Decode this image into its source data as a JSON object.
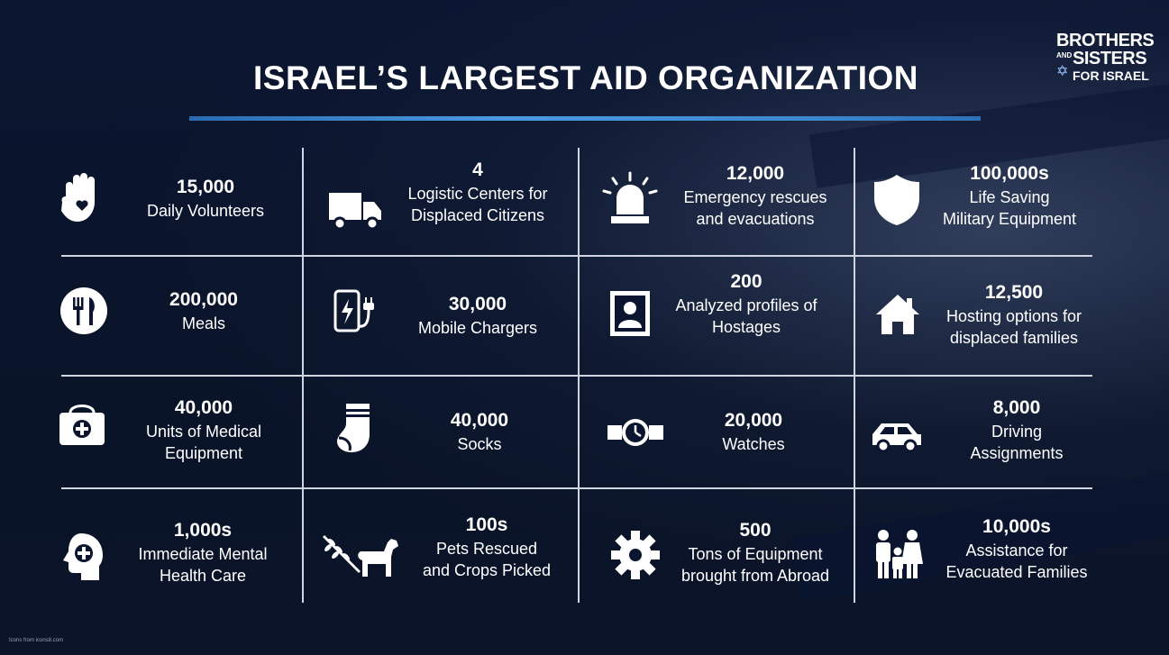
{
  "title": "ISRAEL’S LARGEST AID ORGANIZATION",
  "logo": {
    "line1": "BROTHERS",
    "line2": "AND",
    "line3": "SISTERS",
    "line4": "FOR ISRAEL"
  },
  "credit": "Icons from icons8.com",
  "stats": [
    {
      "number": "15,000",
      "label_1": "Daily Volunteers",
      "label_2": "",
      "icon": "hand-heart-icon"
    },
    {
      "number": "4",
      "label_1": "Logistic Centers for",
      "label_2": "Displaced Citizens",
      "icon": "truck-icon"
    },
    {
      "number": "12,000",
      "label_1": "Emergency rescues",
      "label_2": "and evacuations",
      "icon": "siren-icon"
    },
    {
      "number": "100,000s",
      "label_1": "Life Saving",
      "label_2": "Military Equipment",
      "icon": "shield-icon"
    },
    {
      "number": "200,000",
      "label_1": "Meals",
      "label_2": "",
      "icon": "fork-knife-icon"
    },
    {
      "number": "30,000",
      "label_1": "Mobile Chargers",
      "label_2": "",
      "icon": "charger-icon"
    },
    {
      "number": "200",
      "label_1": "Analyzed profiles of",
      "label_2": "Hostages",
      "icon": "profile-icon"
    },
    {
      "number": "12,500",
      "label_1": "Hosting options for",
      "label_2": "displaced families",
      "icon": "house-icon"
    },
    {
      "number": "40,000",
      "label_1": "Units of Medical",
      "label_2": "Equipment",
      "icon": "medical-kit-icon"
    },
    {
      "number": "40,000",
      "label_1": "Socks",
      "label_2": "",
      "icon": "sock-icon"
    },
    {
      "number": "20,000",
      "label_1": "Watches",
      "label_2": "",
      "icon": "watch-icon"
    },
    {
      "number": "8,000",
      "label_1": "Driving",
      "label_2": "Assignments",
      "icon": "car-icon"
    },
    {
      "number": "1,000s",
      "label_1": "Immediate Mental",
      "label_2": "Health Care",
      "icon": "mental-health-icon"
    },
    {
      "number": "100s",
      "label_1": "Pets Rescued",
      "label_2": "and Crops Picked",
      "icon": "dog-wheat-icon"
    },
    {
      "number": "500",
      "label_1": "Tons of Equipment",
      "label_2": "brought from Abroad",
      "icon": "gear-icon"
    },
    {
      "number": "10,000s",
      "label_1": "Assistance for",
      "label_2": "Evacuated Families",
      "icon": "family-icon"
    }
  ]
}
